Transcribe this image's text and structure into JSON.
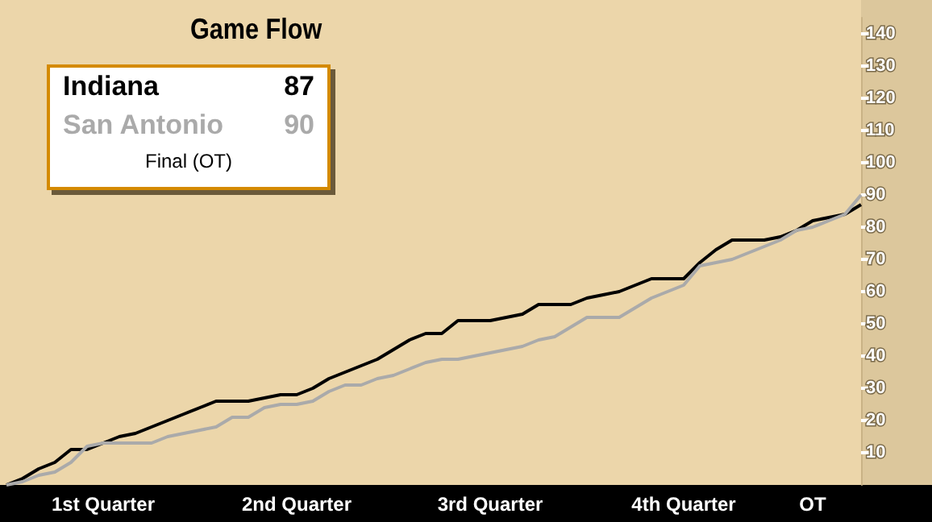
{
  "chart_data": {
    "type": "line",
    "title": "Game Flow",
    "categories": [
      null,
      null,
      null,
      null,
      null,
      null,
      "1st Quarter",
      null,
      null,
      null,
      null,
      null,
      null,
      null,
      null,
      null,
      null,
      null,
      "2nd Quarter",
      null,
      null,
      null,
      null,
      null,
      null,
      null,
      null,
      null,
      null,
      null,
      "3rd Quarter",
      null,
      null,
      null,
      null,
      null,
      null,
      null,
      null,
      null,
      null,
      null,
      "4th Quarter",
      null,
      null,
      null,
      null,
      null,
      null,
      null,
      "OT",
      null,
      null,
      null
    ],
    "series": [
      {
        "name": "Indiana",
        "color": "#000000",
        "values": [
          0,
          2,
          5,
          7,
          11,
          11,
          13,
          15,
          16,
          18,
          20,
          22,
          24,
          26,
          26,
          26,
          27,
          28,
          28,
          30,
          33,
          35,
          37,
          39,
          42,
          45,
          47,
          47,
          51,
          51,
          51,
          52,
          53,
          56,
          56,
          56,
          58,
          59,
          60,
          62,
          64,
          64,
          64,
          69,
          73,
          76,
          76,
          76,
          77,
          79,
          82,
          83,
          84,
          87
        ]
      },
      {
        "name": "San Antonio",
        "color": "#aaaaaa",
        "values": [
          0,
          1,
          3,
          4,
          7,
          12,
          13,
          13,
          13,
          13,
          15,
          16,
          17,
          18,
          21,
          21,
          24,
          25,
          25,
          26,
          29,
          31,
          31,
          33,
          34,
          36,
          38,
          39,
          39,
          40,
          41,
          42,
          43,
          45,
          46,
          49,
          52,
          52,
          52,
          55,
          58,
          60,
          62,
          68,
          69,
          70,
          72,
          74,
          76,
          79,
          80,
          82,
          84,
          90
        ]
      }
    ],
    "ylim": [
      0,
      145
    ],
    "yticks": [
      10,
      20,
      30,
      40,
      50,
      60,
      70,
      80,
      90,
      100,
      110,
      120,
      130,
      140
    ],
    "legend": "top left",
    "annotations": [
      "87",
      "90",
      "Final (OT)"
    ],
    "grid": false
  }
}
